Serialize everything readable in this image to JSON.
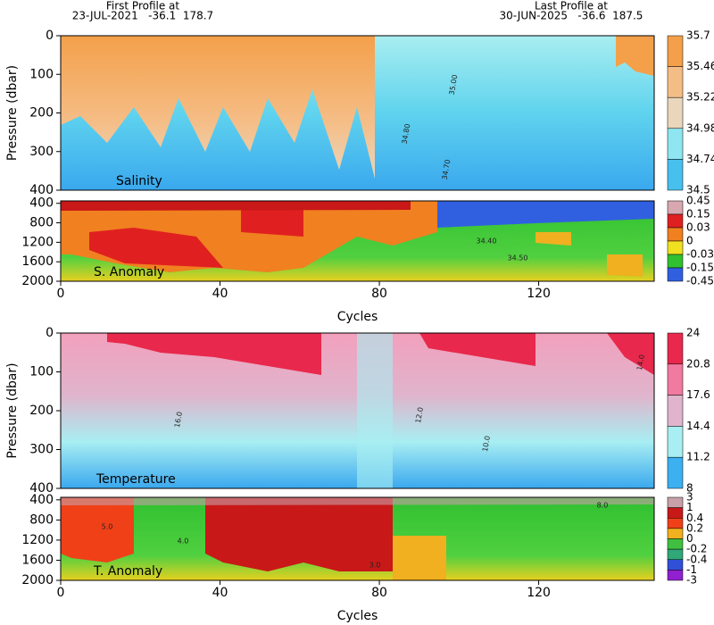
{
  "header": {
    "first_label": "First Profile at",
    "first_info": "23-JUL-2021   -36.1  178.7",
    "last_label": "Last Profile at",
    "last_info": "30-JUN-2025   -36.6  187.5"
  },
  "chart_data": [
    {
      "type": "heatmap",
      "title": "Salinity",
      "ylabel": "Pressure (dbar)",
      "xlim": [
        0,
        149
      ],
      "ylim": [
        0,
        400
      ],
      "yticks": [
        0,
        100,
        200,
        300,
        400
      ],
      "colorbar": {
        "labels": [
          35.7,
          35.46,
          35.22,
          34.98,
          34.74,
          34.5
        ],
        "colors": [
          "#f4a04a",
          "#f5bd86",
          "#e9d6bc",
          "#8fe6f0",
          "#47c0ee"
        ]
      },
      "annotations": [
        "35.00",
        "34.80",
        "34.70"
      ]
    },
    {
      "type": "heatmap",
      "title": "S. Anomaly",
      "xlabel": "Cycles",
      "xlim": [
        0,
        149
      ],
      "xticks": [
        0,
        40,
        80,
        120
      ],
      "ylim": [
        350,
        2000
      ],
      "yticks": [
        400,
        800,
        1200,
        1600,
        2000
      ],
      "colorbar": {
        "labels": [
          0.45,
          0.15,
          0.03,
          0,
          -0.03,
          -0.15,
          -0.45
        ],
        "colors": [
          "#d8a8b0",
          "#e02020",
          "#f08020",
          "#f0e020",
          "#30c030",
          "#3060e0"
        ]
      },
      "annotations": [
        "34.40",
        "34.50"
      ]
    },
    {
      "type": "heatmap",
      "title": "Temperature",
      "ylabel": "Pressure (dbar)",
      "xlim": [
        0,
        149
      ],
      "ylim": [
        0,
        400
      ],
      "yticks": [
        0,
        100,
        200,
        300,
        400
      ],
      "colorbar": {
        "labels": [
          24,
          20.8,
          17.6,
          14.4,
          11.2,
          8
        ],
        "colors": [
          "#e8284c",
          "#f07aa0",
          "#e0b4cc",
          "#a8eef2",
          "#3cb0f0"
        ]
      },
      "annotations": [
        "16.0",
        "14.0",
        "12.0",
        "10.0"
      ]
    },
    {
      "type": "heatmap",
      "title": "T. Anomaly",
      "xlabel": "Cycles",
      "xlim": [
        0,
        149
      ],
      "xticks": [
        0,
        40,
        80,
        120
      ],
      "ylim": [
        350,
        2000
      ],
      "yticks": [
        400,
        800,
        1200,
        1600,
        2000
      ],
      "colorbar": {
        "labels": [
          3,
          1,
          0.4,
          0.2,
          0,
          -0.2,
          -0.4,
          -1,
          -3
        ],
        "colors": [
          "#c8a0a8",
          "#c81818",
          "#f04018",
          "#f0b020",
          "#40c040",
          "#30a878",
          "#3050d8",
          "#9020d0"
        ]
      },
      "annotations": [
        "5.0",
        "4.0",
        "3.0",
        "8.0"
      ]
    }
  ]
}
